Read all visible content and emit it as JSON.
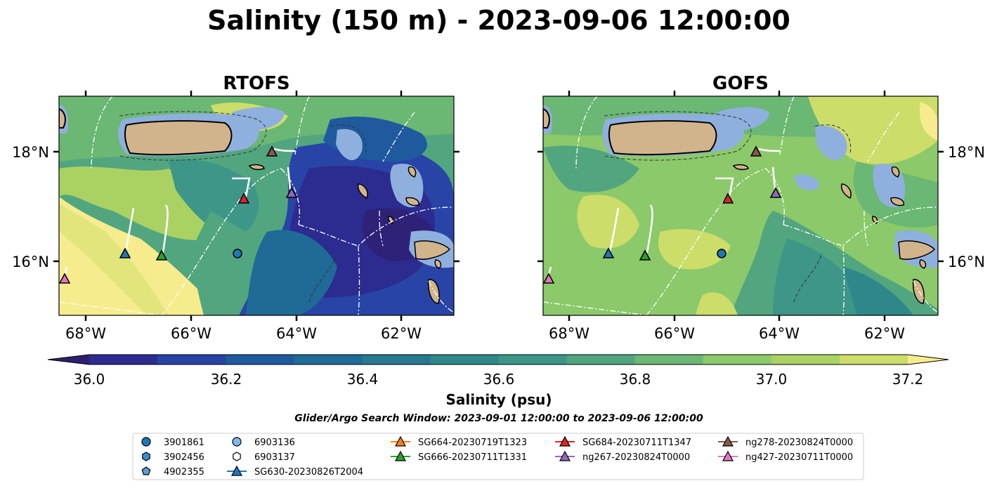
{
  "figure": {
    "title": "Salinity (150 m) - 2023-09-06 12:00:00",
    "search_window": "Glider/Argo Search Window: 2023-09-01 12:00:00 to 2023-09-06 12:00:00"
  },
  "panels": [
    {
      "title": "RTOFS"
    },
    {
      "title": "GOFS"
    }
  ],
  "axes": {
    "lon_ticks": [
      "68°W",
      "66°W",
      "64°W",
      "62°W"
    ],
    "lat_ticks": [
      "18°N",
      "16°N"
    ]
  },
  "colorbar": {
    "label": "Salinity (psu)",
    "ticks": [
      "36.0",
      "36.2",
      "36.4",
      "36.6",
      "36.8",
      "37.0",
      "37.2"
    ],
    "colors": [
      "#2e1f6e",
      "#2c2b8f",
      "#2744a6",
      "#1f5a9e",
      "#1f6a96",
      "#26798f",
      "#2f878a",
      "#3d9687",
      "#52a67f",
      "#6bb774",
      "#8bc96a",
      "#a9d263",
      "#cddd6a",
      "#f6ec8e"
    ]
  },
  "legend": {
    "items": [
      {
        "label": "3901861",
        "marker": "circle",
        "color": "#1f77b4"
      },
      {
        "label": "3902456",
        "marker": "hexagon",
        "color": "#3b8bd0"
      },
      {
        "label": "4902355",
        "marker": "pentagon",
        "color": "#5a9fd8"
      },
      {
        "label": "6903136",
        "marker": "circle",
        "color": "#7fb8e6"
      },
      {
        "label": "6903137",
        "marker": "hexagon",
        "color": "#ffffff"
      },
      {
        "label": "SG630-20230826T2004",
        "marker": "triangle",
        "color": "#1f77b4"
      },
      {
        "label": "SG664-20230719T1323",
        "marker": "triangle",
        "color": "#ff7f0e"
      },
      {
        "label": "SG666-20230711T1331",
        "marker": "triangle",
        "color": "#2ca02c"
      },
      {
        "label": "SG684-20230711T1347",
        "marker": "triangle",
        "color": "#d62728"
      },
      {
        "label": "ng267-20230824T0000",
        "marker": "triangle",
        "color": "#9467bd"
      },
      {
        "label": "ng278-20230824T0000",
        "marker": "triangle",
        "color": "#8c564b"
      },
      {
        "label": "ng427-20230711T0000",
        "marker": "triangle",
        "color": "#e377c2"
      }
    ]
  },
  "map": {
    "land_color": "#d2b48c",
    "shallow_color": "#8fb0de"
  }
}
